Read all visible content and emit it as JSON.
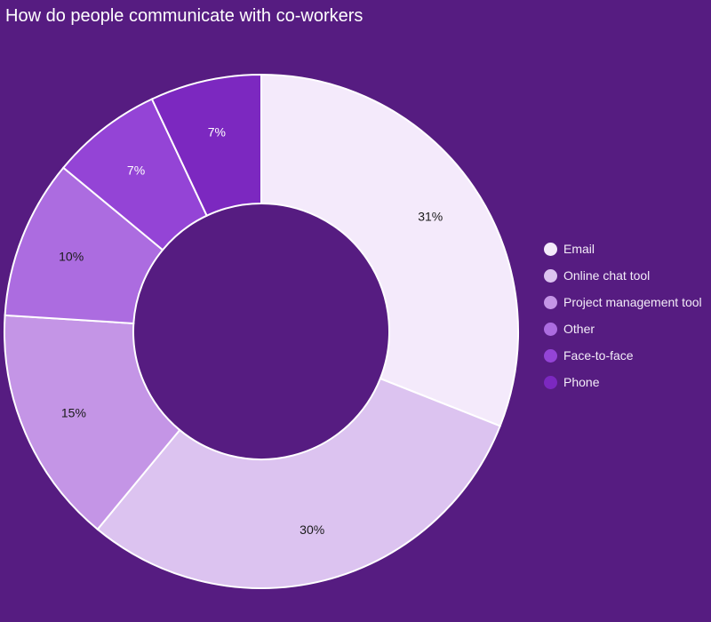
{
  "chart_data": {
    "type": "pie",
    "title": "How do people communicate with co-workers",
    "donut": true,
    "value_format": "percent",
    "legend_position": "right",
    "background_color": "#561c81",
    "categories": [
      "Email",
      "Online chat tool",
      "Project management tool",
      "Other",
      "Face-to-face",
      "Phone"
    ],
    "values": [
      31,
      30,
      15,
      10,
      7,
      7
    ],
    "colors": [
      "#f4eafb",
      "#dcc3f0",
      "#c495e6",
      "#ac6ce0",
      "#9444d6",
      "#7c28c0"
    ],
    "label_colors": [
      "#1a1a1a",
      "#1a1a1a",
      "#1a1a1a",
      "#1a1a1a",
      "#ffffff",
      "#ffffff"
    ]
  }
}
